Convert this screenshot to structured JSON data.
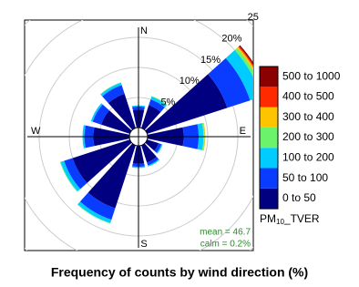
{
  "chart_data": {
    "type": "windrose",
    "title": "Frequency of counts by wind direction (%)",
    "x": [
      0,
      30,
      60,
      90,
      120,
      150,
      180,
      210,
      240,
      270,
      300,
      330
    ],
    "series": [
      {
        "name": "0 to 50",
        "color": "#000080",
        "values": [
          3,
          4,
          14,
          6,
          2,
          3,
          3,
          11,
          10,
          6,
          5,
          6
        ]
      },
      {
        "name": "50 to 100",
        "color": "#0a3cff",
        "values": [
          0.5,
          1,
          4,
          2.5,
          0.5,
          0.5,
          0.5,
          2,
          1.5,
          1.5,
          1.5,
          1.5
        ]
      },
      {
        "name": "100 to 200",
        "color": "#00ccff",
        "values": [
          0.2,
          0.5,
          2,
          0.8,
          0.2,
          0.2,
          0.2,
          0.6,
          0.6,
          0.3,
          0.3,
          0.4
        ]
      },
      {
        "name": "200 to 300",
        "color": "#6cf36c",
        "values": [
          0,
          0.1,
          0.5,
          0.2,
          0,
          0,
          0,
          0.1,
          0.1,
          0,
          0,
          0.1
        ]
      },
      {
        "name": "300 to 400",
        "color": "#ffc400",
        "values": [
          0,
          0,
          0.3,
          0.1,
          0,
          0,
          0,
          0,
          0,
          0,
          0,
          0
        ]
      },
      {
        "name": "400 to 500",
        "color": "#ff2a00",
        "values": [
          0,
          0,
          0.2,
          0,
          0,
          0,
          0,
          0,
          0,
          0,
          0,
          0
        ]
      },
      {
        "name": "500 to 1000",
        "color": "#8b0000",
        "values": [
          0,
          0,
          0.2,
          0,
          0,
          0,
          0,
          0,
          0,
          0,
          0,
          0
        ]
      }
    ],
    "rlim": [
      0,
      25
    ],
    "rticks": [
      {
        "value": 5,
        "label": "5%"
      },
      {
        "value": 10,
        "label": "10%"
      },
      {
        "value": 15,
        "label": "15%"
      },
      {
        "value": 20,
        "label": "20%"
      },
      25
    ],
    "directions": [
      "N",
      "E",
      "S",
      "W"
    ],
    "legend_title": {
      "main": "PM",
      "sub": "10",
      "rest": "_TVER"
    },
    "annotations": [
      "mean = 46.7",
      "calm = 0.2%"
    ]
  }
}
